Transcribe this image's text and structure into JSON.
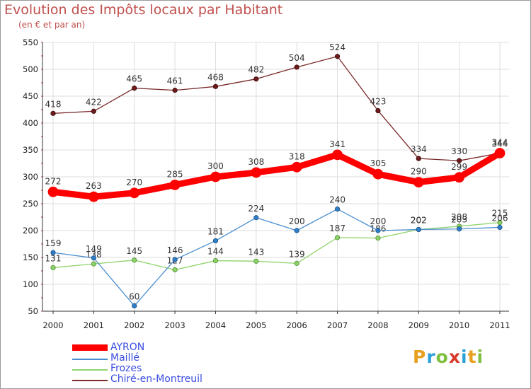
{
  "header": {
    "title": "Evolution des Impôts locaux par Habitant",
    "subtitle": "(en € et par an)"
  },
  "logo": {
    "letters": [
      "P",
      "r",
      "o",
      "x",
      "i",
      "t",
      "i"
    ],
    "colors": [
      "#e8a020",
      "#2ea0d8",
      "#7fbf3f",
      "#d83a2a",
      "#2ea0d8",
      "#e8a020",
      "#7fbf3f"
    ]
  },
  "chart_data": {
    "type": "line",
    "x": [
      "2000",
      "2001",
      "2002",
      "2003",
      "2004",
      "2005",
      "2006",
      "2007",
      "2008",
      "2009",
      "2010",
      "2011"
    ],
    "ylim": [
      50,
      550
    ],
    "yticks": [
      50,
      100,
      150,
      200,
      250,
      300,
      350,
      400,
      450,
      500,
      550
    ],
    "grid": true,
    "legend_position": "bottom-left",
    "series": [
      {
        "name": "AYRON",
        "color": "#ff0000",
        "values": [
          272,
          263,
          270,
          285,
          300,
          308,
          318,
          341,
          305,
          290,
          299,
          344
        ]
      },
      {
        "name": "Maillé",
        "color": "#4a8ed0",
        "values": [
          159,
          149,
          60,
          146,
          181,
          224,
          200,
          240,
          200,
          202,
          203,
          206
        ]
      },
      {
        "name": "Frozes",
        "color": "#8ed36a",
        "values": [
          131,
          138,
          145,
          127,
          144,
          143,
          139,
          187,
          186,
          202,
          208,
          215
        ]
      },
      {
        "name": "Chiré-en-Montreuil",
        "color": "#7a2a2a",
        "values": [
          418,
          422,
          465,
          461,
          468,
          482,
          504,
          524,
          423,
          334,
          330,
          344
        ]
      }
    ]
  }
}
